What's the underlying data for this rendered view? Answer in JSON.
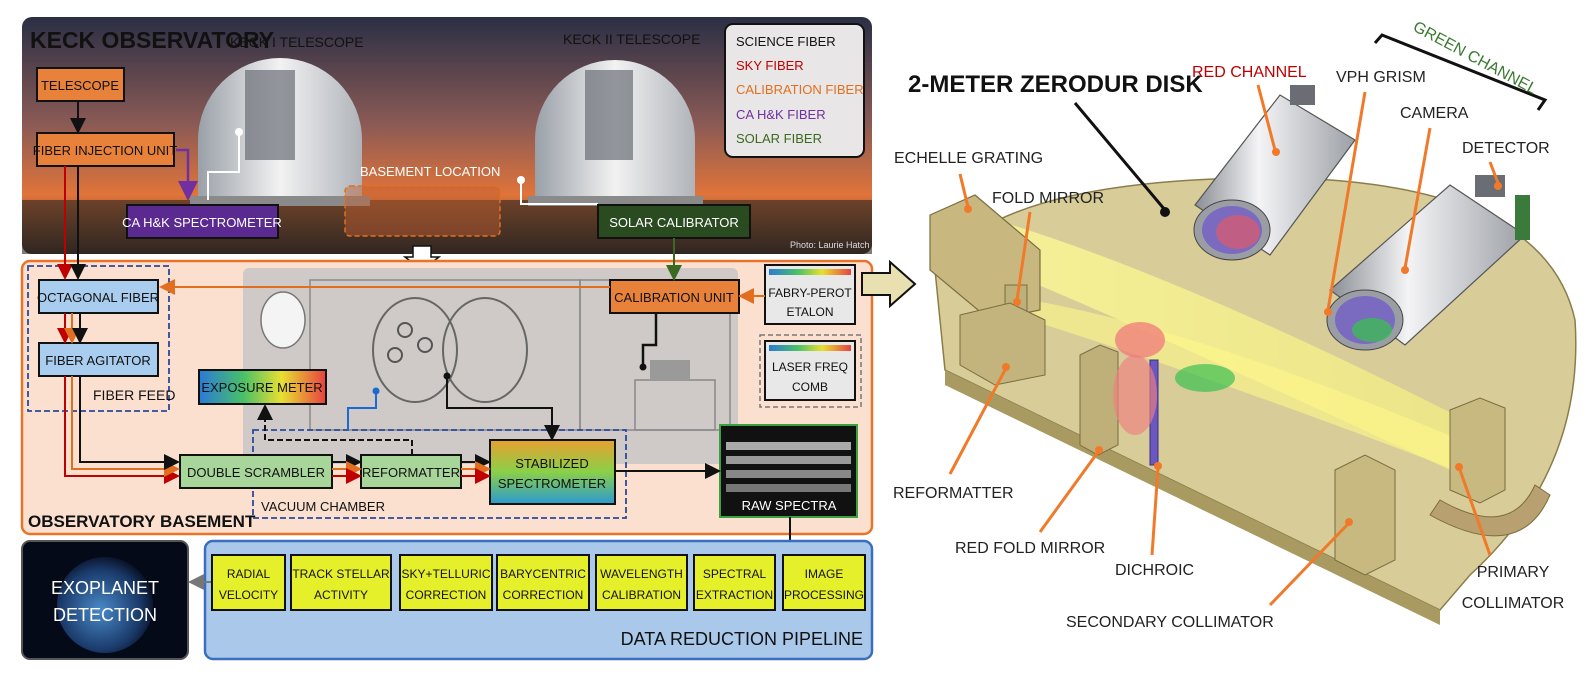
{
  "keck": {
    "title": "KECK OBSERVATORY",
    "keck1": "KECK I TELESCOPE",
    "keck2": "KECK II TELESCOPE",
    "basement_location": "BASEMENT LOCATION",
    "photo_credit": "Photo: Laurie Hatch",
    "telescope": "TELESCOPE",
    "fiber_injection": "FIBER INJECTION UNIT",
    "ca_hk_spectrometer": "CA H&K SPECTROMETER",
    "solar_calibrator": "SOLAR CALIBRATOR"
  },
  "legend": [
    {
      "label": "SCIENCE FIBER",
      "color": "#111111"
    },
    {
      "label": "SKY FIBER",
      "color": "#c00000"
    },
    {
      "label": "CALIBRATION FIBER",
      "color": "#e07020"
    },
    {
      "label": "CA H&K FIBER",
      "color": "#7030a0"
    },
    {
      "label": "SOLAR FIBER",
      "color": "#3a6a20"
    }
  ],
  "basement": {
    "title": "OBSERVATORY BASEMENT",
    "octagonal_fiber": "OCTAGONAL FIBER",
    "fiber_agitator": "FIBER AGITATOR",
    "fiber_feed": "FIBER FEED",
    "exposure_meter": "EXPOSURE METER",
    "double_scrambler": "DOUBLE SCRAMBLER",
    "reformatter": "REFORMATTER",
    "stabilized_line1": "STABILIZED",
    "stabilized_line2": "SPECTROMETER",
    "vacuum_chamber": "VACUUM CHAMBER",
    "calibration_unit": "CALIBRATION UNIT",
    "fabry_line1": "FABRY-PEROT",
    "fabry_line2": "ETALON",
    "laser_line1": "LASER FREQ",
    "laser_line2": "COMB",
    "raw_spectra": "RAW SPECTRA"
  },
  "pipeline": {
    "title": "DATA REDUCTION PIPELINE",
    "steps": [
      {
        "l1": "RADIAL",
        "l2": "VELOCITY"
      },
      {
        "l1": "TRACK STELLAR",
        "l2": "ACTIVITY"
      },
      {
        "l1": "SKY+TELLURIC",
        "l2": "CORRECTION"
      },
      {
        "l1": "BARYCENTRIC",
        "l2": "CORRECTION"
      },
      {
        "l1": "WAVELENGTH",
        "l2": "CALIBRATION"
      },
      {
        "l1": "SPECTRAL",
        "l2": "EXTRACTION"
      },
      {
        "l1": "IMAGE",
        "l2": "PROCESSING"
      }
    ],
    "exoplanet_line1": "EXOPLANET",
    "exoplanet_line2": "DETECTION"
  },
  "spectrograph": {
    "zerodur": "2-METER ZERODUR DISK",
    "red_channel": "RED CHANNEL",
    "vph_grism": "VPH GRISM",
    "green_channel": "GREEN CHANNEL",
    "camera": "CAMERA",
    "detector": "DETECTOR",
    "echelle": "ECHELLE GRATING",
    "fold_mirror": "FOLD MIRROR",
    "reformatter": "REFORMATTER",
    "red_fold_mirror": "RED FOLD MIRROR",
    "dichroic": "DICHROIC",
    "secondary_collimator": "SECONDARY COLLIMATOR",
    "primary_line1": "PRIMARY",
    "primary_line2": "COLLIMATOR"
  },
  "colors": {
    "sky_gradient_top": "#2a2f45",
    "sky_gradient_bottom": "#e0743a",
    "basement_fill": "#fbe0d0",
    "basement_border": "#e8742a",
    "pipeline_fill": "#a9c8ea",
    "pipeline_border": "#3a6fc0",
    "step_fill": "#e6f02a",
    "light_blue_box": "#a9cdee",
    "green_box": "#a8d59a",
    "orange_box": "#e8823a",
    "disk_fill": "#d8cc98"
  }
}
